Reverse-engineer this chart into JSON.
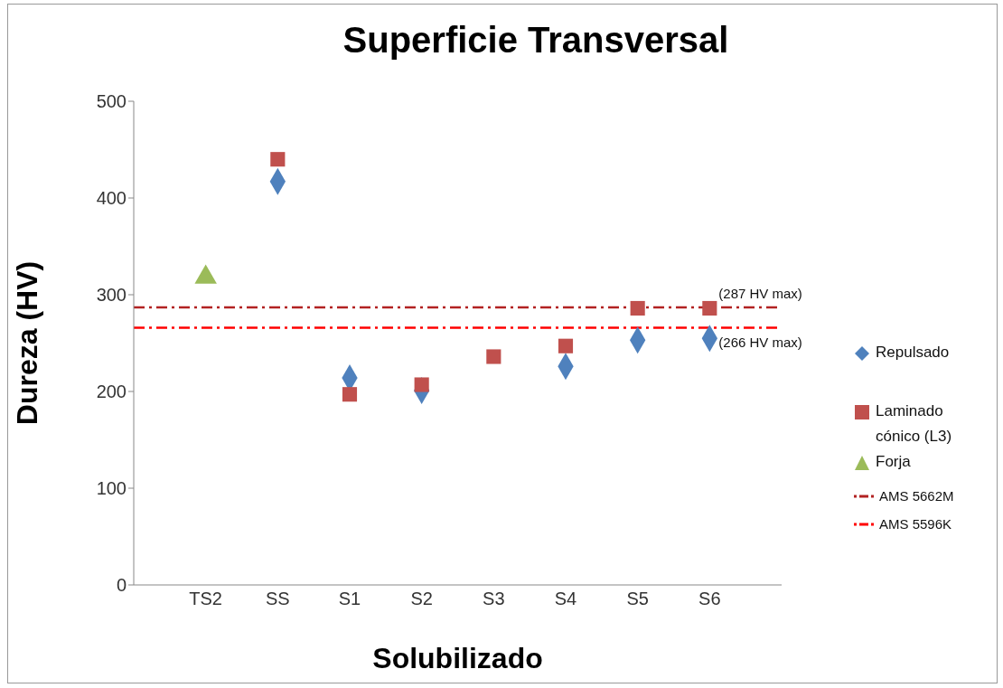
{
  "chart_data": {
    "type": "scatter",
    "title": "Superficie Transversal",
    "xlabel": "Solubilizado",
    "ylabel": "Dureza (HV)",
    "categories": [
      null,
      "TS2",
      "SS",
      "S1",
      "S2",
      "S3",
      "S4",
      "S5",
      "S6",
      null
    ],
    "series": [
      {
        "name": "Repulsado",
        "color": "#4f81bd",
        "marker": "diamond",
        "values": [
          null,
          null,
          417,
          214,
          201,
          null,
          226,
          253,
          255,
          null
        ]
      },
      {
        "name": "Laminado cónico (L3)",
        "color": "#c0504d",
        "marker": "square",
        "values": [
          null,
          null,
          440,
          197,
          207,
          236,
          247,
          286,
          286,
          null
        ]
      },
      {
        "name": "Forja",
        "color": "#9bbb59",
        "marker": "triangle",
        "values": [
          null,
          318,
          null,
          null,
          null,
          null,
          null,
          null,
          null,
          null
        ]
      }
    ],
    "ref_lines": [
      {
        "axis": "y",
        "value": 287,
        "label": "AMS 5662M",
        "color": "#b22222",
        "line_style": "dashdot"
      },
      {
        "axis": "y",
        "value": 266,
        "label": "AMS 5596K",
        "color": "#ff0000",
        "line_style": "dashdot"
      }
    ],
    "annotations": [
      {
        "text": "(287 HV max)",
        "x": "S6",
        "y": 287
      },
      {
        "text": "(266 HV max)",
        "x": "S6",
        "y": 266
      }
    ],
    "ylim": [
      0,
      500
    ],
    "yticks": [
      0,
      100,
      200,
      300,
      400,
      500
    ],
    "legend": "right"
  }
}
